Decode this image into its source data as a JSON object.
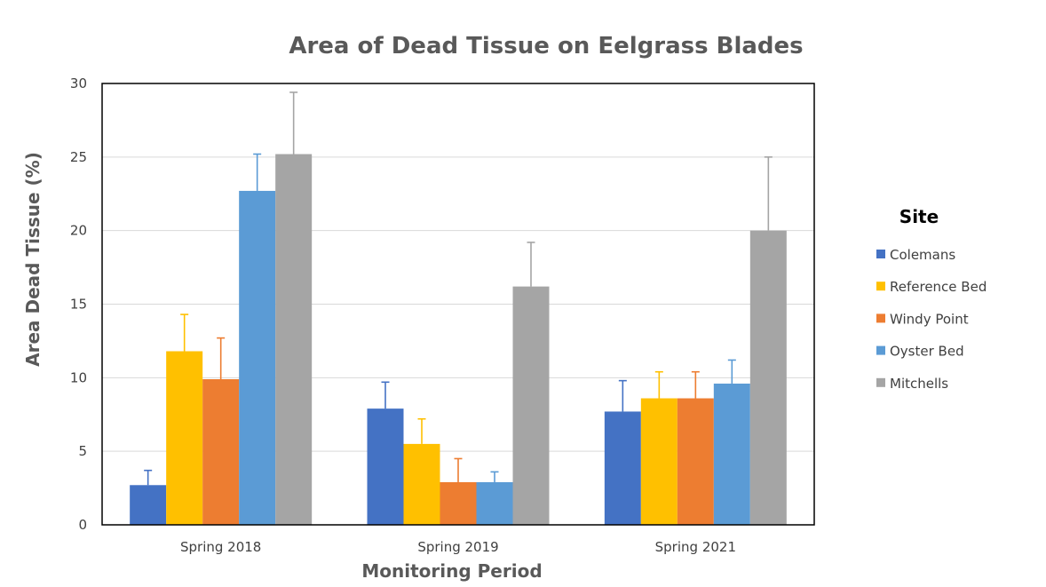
{
  "chart_data": {
    "type": "bar",
    "title": "Area of Dead Tissue on Eelgrass Blades",
    "xlabel": "Monitoring Period",
    "ylabel": "Area Dead Tissue (%)",
    "ylim": [
      0,
      30
    ],
    "yticks": [
      0,
      5,
      10,
      15,
      20,
      25,
      30
    ],
    "grid": true,
    "legend": {
      "title": "Site",
      "position": "right"
    },
    "categories": [
      "Spring 2018",
      "Spring 2019",
      "Spring 2021"
    ],
    "series": [
      {
        "name": "Colemans",
        "color": "#4472C4",
        "values": [
          2.7,
          7.9,
          7.7
        ],
        "error_upper": [
          1.0,
          1.8,
          2.1
        ]
      },
      {
        "name": "Reference Bed",
        "color": "#FFC000",
        "values": [
          11.8,
          5.5,
          8.6
        ],
        "error_upper": [
          2.5,
          1.7,
          1.8
        ]
      },
      {
        "name": "Windy Point",
        "color": "#ED7D31",
        "values": [
          9.9,
          2.9,
          8.6
        ],
        "error_upper": [
          2.8,
          1.6,
          1.8
        ]
      },
      {
        "name": "Oyster Bed",
        "color": "#5B9BD5",
        "values": [
          22.7,
          2.9,
          9.6
        ],
        "error_upper": [
          2.5,
          0.7,
          1.6
        ]
      },
      {
        "name": "Mitchells",
        "color": "#A5A5A5",
        "values": [
          25.2,
          16.2,
          20.0
        ],
        "error_upper": [
          4.2,
          3.0,
          5.0
        ]
      }
    ]
  }
}
